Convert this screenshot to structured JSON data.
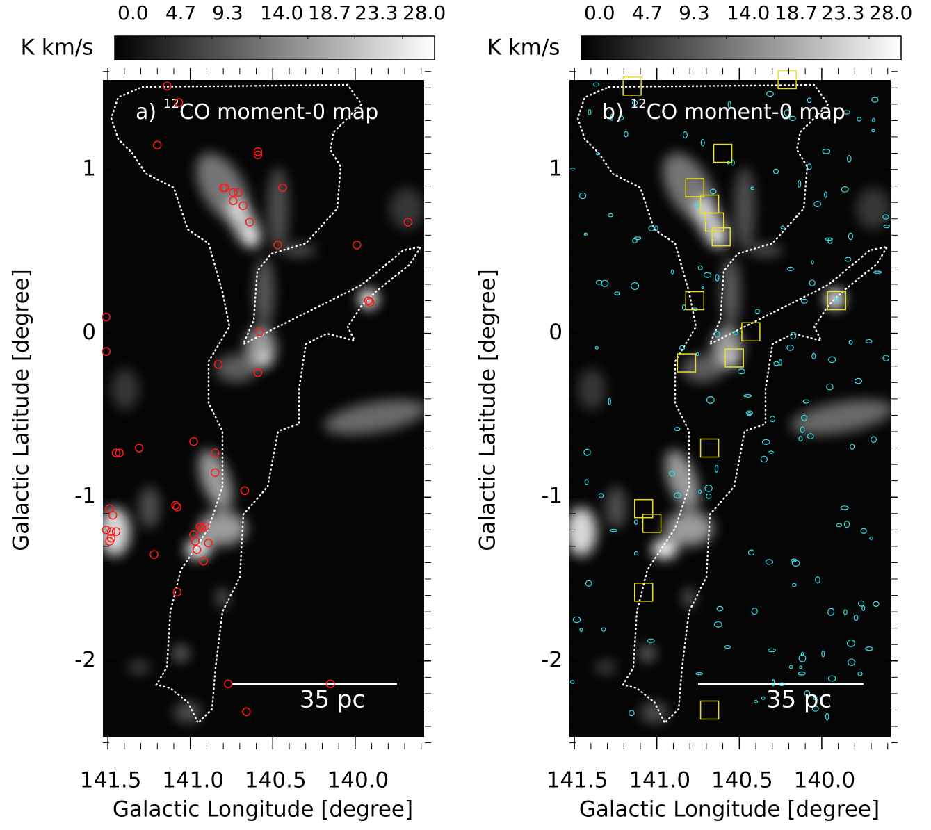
{
  "chart_data": [
    {
      "type": "image",
      "panel_label": "a)",
      "title_superscript": "12",
      "title": "CO moment-0 map",
      "xlabel": "Galactic Longitude [degree]",
      "ylabel": "Galactic Latitude [degree]",
      "xlim": [
        141.53,
        139.54
      ],
      "ylim": [
        -2.54,
        1.62
      ],
      "xticks": [
        141.5,
        {
          "value": 141,
          "label": "141.0"
        },
        140.5,
        {
          "value": 140,
          "label": "140.0"
        }
      ],
      "yticks": [
        1,
        0,
        -1,
        -2
      ],
      "colorbar": {
        "label": "K km/s",
        "lim": [
          0,
          28
        ],
        "ticks": [
          {
            "value": 0,
            "label": "0.0"
          },
          4.7,
          9.3,
          {
            "value": 14,
            "label": "14.0"
          },
          18.7,
          23.3,
          {
            "value": 28,
            "label": "28.0"
          }
        ]
      },
      "scale_bar": "35 pc",
      "markers": {
        "shape": "circle",
        "color": "#ff1a1a",
        "x": [
          141.14,
          141.07,
          141.2,
          140.59,
          140.59,
          140.8,
          140.79,
          140.74,
          140.71,
          140.74,
          140.68,
          140.64,
          140.44,
          140.47,
          139.99,
          139.68,
          139.92,
          139.91,
          140.58,
          141.51,
          141.51,
          140.83,
          140.59,
          140.98,
          141.31,
          141.45,
          141.43,
          140.85,
          140.85,
          140.67,
          141.09,
          141.08,
          141.49,
          141.47,
          140.94,
          140.93,
          140.91,
          140.98,
          140.97,
          140.96,
          140.89,
          141.22,
          140.92,
          141.51,
          141.48,
          141.45,
          141.48,
          141.49,
          141.08,
          140.77,
          140.15,
          140.66
        ],
        "y": [
          1.51,
          1.41,
          1.15,
          1.11,
          1.09,
          0.89,
          0.89,
          0.86,
          0.86,
          0.81,
          0.78,
          0.68,
          0.89,
          0.54,
          0.54,
          0.68,
          0.2,
          0.19,
          0.01,
          0.1,
          -0.11,
          -0.19,
          -0.24,
          -0.66,
          -0.7,
          -0.73,
          -0.73,
          -0.73,
          -0.85,
          -0.96,
          -1.05,
          -1.06,
          -1.07,
          -1.11,
          -1.18,
          -1.19,
          -1.18,
          -1.23,
          -1.27,
          -1.32,
          -1.28,
          -1.35,
          -1.39,
          -1.2,
          -1.21,
          -1.21,
          -1.25,
          -1.27,
          -1.58,
          -2.14,
          -2.14,
          -2.31
        ]
      }
    },
    {
      "type": "image",
      "panel_label": "b)",
      "title_superscript": "12",
      "title": "CO moment-0 map",
      "xlabel": "Galactic Longitude [degree]",
      "ylabel": "Galactic Latitude [degree]",
      "xlim": [
        141.53,
        139.54
      ],
      "ylim": [
        -2.54,
        1.62
      ],
      "xticks": [
        141.5,
        {
          "value": 141,
          "label": "141.0"
        },
        140.5,
        {
          "value": 140,
          "label": "140.0"
        }
      ],
      "yticks": [
        1,
        0,
        -1,
        -2
      ],
      "colorbar": {
        "label": "K km/s",
        "lim": [
          0,
          28
        ],
        "ticks": [
          {
            "value": 0,
            "label": "0.0"
          },
          4.7,
          9.3,
          {
            "value": 14,
            "label": "14.0"
          },
          18.7,
          23.3,
          {
            "value": 28,
            "label": "28.0"
          }
        ]
      },
      "scale_bar": "35 pc",
      "markers": {
        "shape": "square",
        "color": "#e8e020",
        "x": [
          141.15,
          140.21,
          140.6,
          140.77,
          140.68,
          140.65,
          140.61,
          140.77,
          139.91,
          140.43,
          140.82,
          140.53,
          140.68,
          141.08,
          141.03,
          141.08,
          140.68
        ],
        "y": [
          1.51,
          1.55,
          1.1,
          0.89,
          0.79,
          0.68,
          0.59,
          0.2,
          0.2,
          0.01,
          -0.18,
          -0.15,
          -0.7,
          -1.07,
          -1.16,
          -1.58,
          -2.3
        ]
      }
    }
  ]
}
